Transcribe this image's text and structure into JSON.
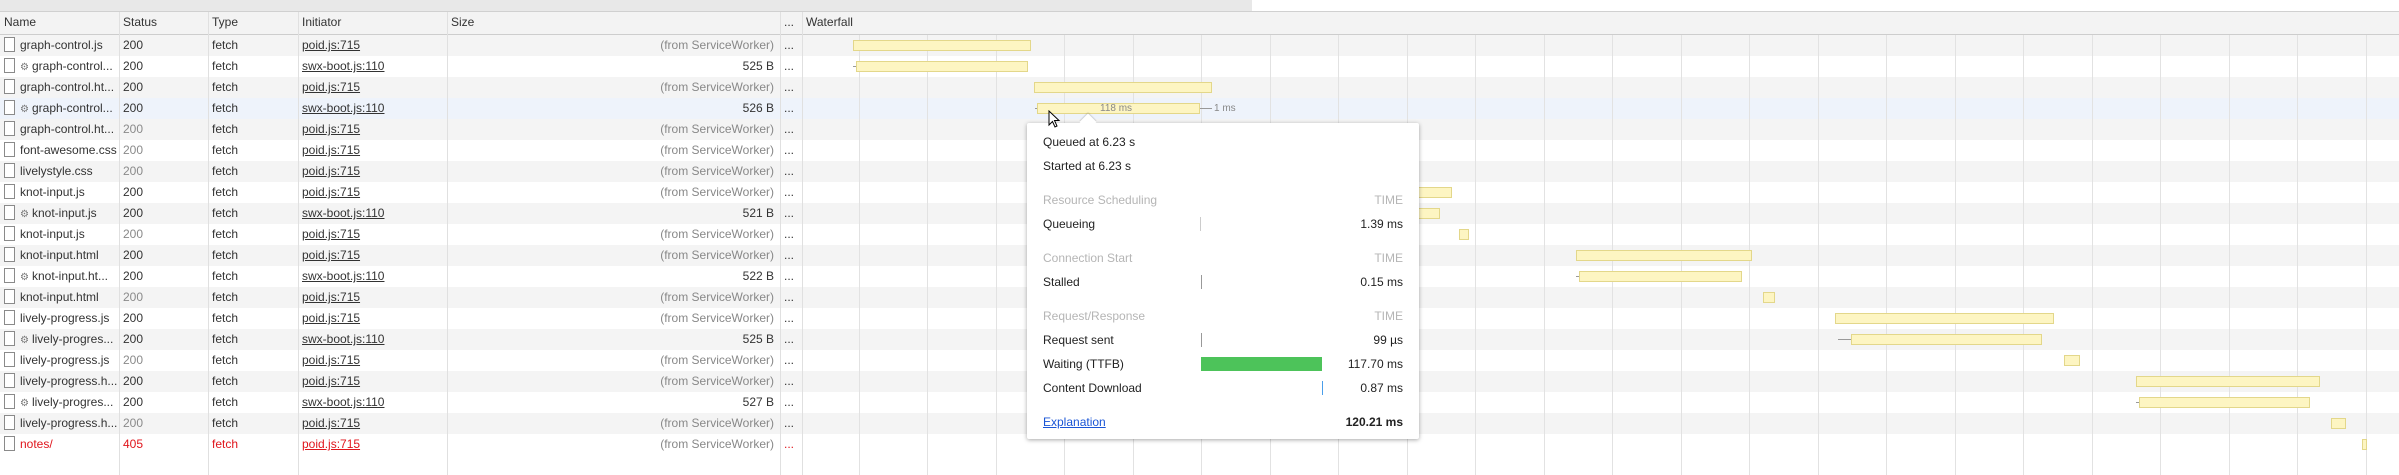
{
  "columns": {
    "name": "Name",
    "status": "Status",
    "type": "Type",
    "initiator": "Initiator",
    "size": "Size",
    "more": "...",
    "waterfall": "Waterfall"
  },
  "rows": [
    {
      "name": "graph-control.js",
      "gear": false,
      "status": "200",
      "status_dim": false,
      "type": "fetch",
      "initiator": "poid.js:715",
      "size": "(from ServiceWorker)",
      "sw": true,
      "error": false
    },
    {
      "name": "graph-control...",
      "gear": true,
      "status": "200",
      "status_dim": false,
      "type": "fetch",
      "initiator": "swx-boot.js:110",
      "size": "525 B",
      "sw": false,
      "error": false
    },
    {
      "name": "graph-control.ht...",
      "gear": false,
      "status": "200",
      "status_dim": false,
      "type": "fetch",
      "initiator": "poid.js:715",
      "size": "(from ServiceWorker)",
      "sw": true,
      "error": false
    },
    {
      "name": "graph-control...",
      "gear": true,
      "status": "200",
      "status_dim": false,
      "type": "fetch",
      "initiator": "swx-boot.js:110",
      "size": "526 B",
      "sw": false,
      "error": false
    },
    {
      "name": "graph-control.ht...",
      "gear": false,
      "status": "200",
      "status_dim": true,
      "type": "fetch",
      "initiator": "poid.js:715",
      "size": "(from ServiceWorker)",
      "sw": true,
      "error": false
    },
    {
      "name": "font-awesome.css",
      "gear": false,
      "status": "200",
      "status_dim": true,
      "type": "fetch",
      "initiator": "poid.js:715",
      "size": "(from ServiceWorker)",
      "sw": true,
      "error": false
    },
    {
      "name": "livelystyle.css",
      "gear": false,
      "status": "200",
      "status_dim": true,
      "type": "fetch",
      "initiator": "poid.js:715",
      "size": "(from ServiceWorker)",
      "sw": true,
      "error": false
    },
    {
      "name": "knot-input.js",
      "gear": false,
      "status": "200",
      "status_dim": false,
      "type": "fetch",
      "initiator": "poid.js:715",
      "size": "(from ServiceWorker)",
      "sw": true,
      "error": false
    },
    {
      "name": "knot-input.js",
      "gear": true,
      "status": "200",
      "status_dim": false,
      "type": "fetch",
      "initiator": "swx-boot.js:110",
      "size": "521 B",
      "sw": false,
      "error": false
    },
    {
      "name": "knot-input.js",
      "gear": false,
      "status": "200",
      "status_dim": true,
      "type": "fetch",
      "initiator": "poid.js:715",
      "size": "(from ServiceWorker)",
      "sw": true,
      "error": false
    },
    {
      "name": "knot-input.html",
      "gear": false,
      "status": "200",
      "status_dim": false,
      "type": "fetch",
      "initiator": "poid.js:715",
      "size": "(from ServiceWorker)",
      "sw": true,
      "error": false
    },
    {
      "name": "knot-input.ht...",
      "gear": true,
      "status": "200",
      "status_dim": false,
      "type": "fetch",
      "initiator": "swx-boot.js:110",
      "size": "522 B",
      "sw": false,
      "error": false
    },
    {
      "name": "knot-input.html",
      "gear": false,
      "status": "200",
      "status_dim": true,
      "type": "fetch",
      "initiator": "poid.js:715",
      "size": "(from ServiceWorker)",
      "sw": true,
      "error": false
    },
    {
      "name": "lively-progress.js",
      "gear": false,
      "status": "200",
      "status_dim": false,
      "type": "fetch",
      "initiator": "poid.js:715",
      "size": "(from ServiceWorker)",
      "sw": true,
      "error": false
    },
    {
      "name": "lively-progres...",
      "gear": true,
      "status": "200",
      "status_dim": false,
      "type": "fetch",
      "initiator": "swx-boot.js:110",
      "size": "525 B",
      "sw": false,
      "error": false
    },
    {
      "name": "lively-progress.js",
      "gear": false,
      "status": "200",
      "status_dim": true,
      "type": "fetch",
      "initiator": "poid.js:715",
      "size": "(from ServiceWorker)",
      "sw": true,
      "error": false
    },
    {
      "name": "lively-progress.h...",
      "gear": false,
      "status": "200",
      "status_dim": false,
      "type": "fetch",
      "initiator": "poid.js:715",
      "size": "(from ServiceWorker)",
      "sw": true,
      "error": false
    },
    {
      "name": "lively-progres...",
      "gear": true,
      "status": "200",
      "status_dim": false,
      "type": "fetch",
      "initiator": "swx-boot.js:110",
      "size": "527 B",
      "sw": false,
      "error": false
    },
    {
      "name": "lively-progress.h...",
      "gear": false,
      "status": "200",
      "status_dim": true,
      "type": "fetch",
      "initiator": "poid.js:715",
      "size": "(from ServiceWorker)",
      "sw": true,
      "error": false
    },
    {
      "name": "notes/",
      "gear": false,
      "status": "405",
      "status_dim": false,
      "type": "fetch",
      "initiator": "poid.js:715",
      "size": "(from ServiceWorker)",
      "sw": true,
      "error": true
    }
  ],
  "waterfall": {
    "hover_bar_label": "118 ms",
    "hover_whisker_label": "1 ms",
    "bar_color": "#fdf5c2",
    "bar_border": "#e3d78a"
  },
  "timing_popup": {
    "queued": "Queued at 6.23 s",
    "started": "Started at 6.23 s",
    "sections": [
      {
        "title": "Resource Scheduling",
        "time_header": "TIME",
        "items": [
          {
            "label": "Queueing",
            "value": "1.39 ms"
          }
        ]
      },
      {
        "title": "Connection Start",
        "time_header": "TIME",
        "items": [
          {
            "label": "Stalled",
            "value": "0.15 ms"
          }
        ]
      },
      {
        "title": "Request/Response",
        "time_header": "TIME",
        "items": [
          {
            "label": "Request sent",
            "value": "99 µs"
          },
          {
            "label": "Waiting (TTFB)",
            "value": "117.70 ms"
          },
          {
            "label": "Content Download",
            "value": "0.87 ms"
          }
        ]
      }
    ],
    "explanation": "Explanation",
    "total": "120.21 ms",
    "ttfb_color": "#4dc35a",
    "download_color": "#4a9eea"
  },
  "colors": {
    "error": "#e0151c",
    "selected_row": "#eef3fb"
  }
}
